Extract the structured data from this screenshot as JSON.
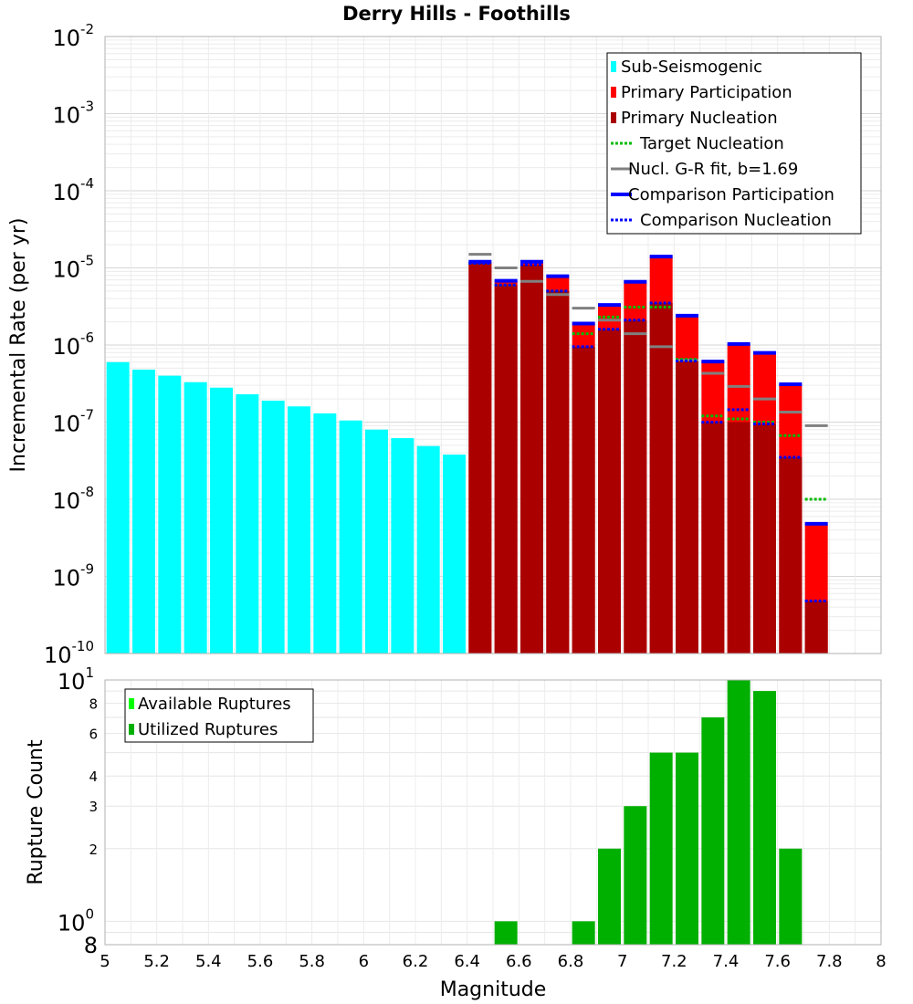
{
  "chart_data": [
    {
      "type": "bar",
      "title": "Derry Hills - Foothills",
      "ylabel": "Incremental Rate (per yr)",
      "xlabel": "",
      "yscale": "log",
      "ylim": [
        1e-10,
        0.01
      ],
      "xlim": [
        5,
        8
      ],
      "y_ticks": [
        {
          "base": "10",
          "exp": "-10",
          "value": 1e-10
        },
        {
          "base": "10",
          "exp": "-9",
          "value": 1e-09
        },
        {
          "base": "10",
          "exp": "-8",
          "value": 1e-08
        },
        {
          "base": "10",
          "exp": "-7",
          "value": 1e-07
        },
        {
          "base": "10",
          "exp": "-6",
          "value": 1e-06
        },
        {
          "base": "10",
          "exp": "-5",
          "value": 1e-05
        },
        {
          "base": "10",
          "exp": "-4",
          "value": 0.0001
        },
        {
          "base": "10",
          "exp": "-3",
          "value": 0.001
        },
        {
          "base": "10",
          "exp": "-2",
          "value": 0.01
        }
      ],
      "legend": {
        "position": "top-right",
        "entries": [
          {
            "label": "Sub-Seismogenic",
            "color": "#00ffff",
            "style": "bar"
          },
          {
            "label": "Primary Participation",
            "color": "#ff0000",
            "style": "bar"
          },
          {
            "label": "Primary Nucleation",
            "color": "#aa0000",
            "style": "bar"
          },
          {
            "label": "Target Nucleation",
            "color": "#00bb00",
            "style": "dotted"
          },
          {
            "label": "Nucl. G-R fit, b=1.69",
            "color": "#808080",
            "style": "solid"
          },
          {
            "label": "Comparison Participation",
            "color": "#0000ff",
            "style": "solid"
          },
          {
            "label": "Comparison Nucleation",
            "color": "#0000ff",
            "style": "dotted"
          }
        ]
      },
      "series": [
        {
          "name": "Sub-Seismogenic",
          "color": "#00ffff",
          "x": [
            5.05,
            5.15,
            5.25,
            5.35,
            5.45,
            5.55,
            5.65,
            5.75,
            5.85,
            5.95,
            6.05,
            6.15,
            6.25,
            6.35
          ],
          "values": [
            6e-07,
            4.8e-07,
            4e-07,
            3.3e-07,
            2.8e-07,
            2.3e-07,
            1.9e-07,
            1.6e-07,
            1.3e-07,
            1.05e-07,
            8e-08,
            6.2e-08,
            4.9e-08,
            3.8e-08
          ]
        },
        {
          "name": "Primary Participation",
          "color": "#ff0000",
          "x": [
            6.45,
            6.55,
            6.65,
            6.75,
            6.85,
            6.95,
            7.05,
            7.15,
            7.25,
            7.35,
            7.45,
            7.55,
            7.65,
            7.75
          ],
          "values": [
            1.2e-05,
            6.8e-06,
            1.2e-05,
            7.8e-06,
            1.9e-06,
            3.3e-06,
            6.6e-06,
            1.4e-05,
            2.4e-06,
            6.1e-07,
            1.03e-06,
            7.9e-07,
            3.1e-07,
            4.8e-09
          ]
        },
        {
          "name": "Primary Nucleation",
          "color": "#aa0000",
          "x": [
            6.45,
            6.55,
            6.65,
            6.75,
            6.85,
            6.95,
            7.05,
            7.15,
            7.25,
            7.35,
            7.45,
            7.55,
            7.65,
            7.75
          ],
          "values": [
            1.15e-05,
            6e-06,
            1.1e-05,
            5e-06,
            9.5e-07,
            1.6e-06,
            2.1e-06,
            3.5e-06,
            6.2e-07,
            1e-07,
            1e-07,
            9.5e-08,
            3.5e-08,
            4.8e-10
          ]
        },
        {
          "name": "Target Nucleation",
          "color": "#00bb00",
          "style": "dotted",
          "x": [
            6.45,
            6.55,
            6.65,
            6.75,
            6.85,
            6.95,
            7.05,
            7.15,
            7.25,
            7.35,
            7.45,
            7.55,
            7.65,
            7.75
          ],
          "values": [
            1.15e-05,
            6e-06,
            1.1e-05,
            5e-06,
            1.4e-06,
            2.3e-06,
            3.1e-06,
            3.1e-06,
            6.5e-07,
            1.2e-07,
            1.1e-07,
            1e-07,
            6.7e-08,
            1e-08
          ]
        },
        {
          "name": "Nucl. G-R fit, b=1.69",
          "color": "#808080",
          "style": "solid",
          "x": [
            6.45,
            6.55,
            6.65,
            6.75,
            6.85,
            6.95,
            7.05,
            7.15,
            7.25,
            7.35,
            7.45,
            7.55,
            7.65,
            7.75
          ],
          "values": [
            1.5e-05,
            1e-05,
            6.7e-06,
            4.5e-06,
            3e-06,
            2.1e-06,
            1.4e-06,
            9.5e-07,
            6.4e-07,
            4.3e-07,
            2.9e-07,
            2e-07,
            1.35e-07,
            9e-08
          ]
        },
        {
          "name": "Comparison Participation",
          "color": "#0000ff",
          "style": "solid",
          "x": [
            6.45,
            6.55,
            6.65,
            6.75,
            6.85,
            6.95,
            7.05,
            7.15,
            7.25,
            7.35,
            7.45,
            7.55,
            7.65,
            7.75
          ],
          "values": [
            1.2e-05,
            6.8e-06,
            1.2e-05,
            7.8e-06,
            1.9e-06,
            3.3e-06,
            6.6e-06,
            1.4e-05,
            2.4e-06,
            6.1e-07,
            1.03e-06,
            7.9e-07,
            3.1e-07,
            4.8e-09
          ]
        },
        {
          "name": "Comparison Nucleation",
          "color": "#0000ff",
          "style": "dotted",
          "x": [
            6.45,
            6.55,
            6.65,
            6.75,
            6.85,
            6.95,
            7.05,
            7.15,
            7.25,
            7.35,
            7.45,
            7.55,
            7.65,
            7.75
          ],
          "values": [
            1.15e-05,
            6e-06,
            1.1e-05,
            5e-06,
            9.5e-07,
            1.6e-06,
            2.1e-06,
            3.5e-06,
            6.2e-07,
            1e-07,
            1.45e-07,
            9.5e-08,
            3.5e-08,
            4.8e-10
          ]
        }
      ]
    },
    {
      "type": "bar",
      "title": "",
      "ylabel": "Rupture Count",
      "xlabel": "Magnitude",
      "yscale": "log",
      "ylim": [
        0.8,
        10
      ],
      "xlim": [
        5,
        8
      ],
      "x_ticks": [
        "5",
        "5.2",
        "5.4",
        "5.6",
        "5.8",
        "6",
        "6.2",
        "6.4",
        "6.6",
        "6.8",
        "7",
        "7.2",
        "7.4",
        "7.6",
        "7.8",
        "8"
      ],
      "y_ticks": [
        {
          "base": "10",
          "exp": "1",
          "value": 10
        },
        {
          "label": "8",
          "value": 8
        },
        {
          "label": "6",
          "value": 6
        },
        {
          "label": "4",
          "value": 4
        },
        {
          "label": "3",
          "value": 3
        },
        {
          "label": "2",
          "value": 2
        },
        {
          "base": "10",
          "exp": "0",
          "value": 1
        },
        {
          "label": "8",
          "value": 0.8
        }
      ],
      "legend": {
        "position": "top-left",
        "entries": [
          {
            "label": "Available Ruptures",
            "color": "#00ff00",
            "style": "bar"
          },
          {
            "label": "Utilized Ruptures",
            "color": "#00b000",
            "style": "bar"
          }
        ]
      },
      "series": [
        {
          "name": "Utilized Ruptures",
          "color": "#00b000",
          "x": [
            6.55,
            6.85,
            6.95,
            7.05,
            7.15,
            7.25,
            7.35,
            7.45,
            7.55,
            7.65
          ],
          "values": [
            1,
            1,
            2,
            3,
            5,
            5,
            7,
            10,
            9,
            2
          ]
        }
      ]
    }
  ]
}
